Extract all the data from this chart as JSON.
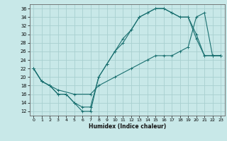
{
  "xlabel": "Humidex (Indice chaleur)",
  "bg_color": "#c8e8e8",
  "line_color": "#1a7070",
  "grid_color": "#a8d0d0",
  "xlim": [
    -0.5,
    23.5
  ],
  "ylim": [
    11,
    37
  ],
  "xticks": [
    0,
    1,
    2,
    3,
    4,
    5,
    6,
    7,
    8,
    9,
    10,
    11,
    12,
    13,
    14,
    15,
    16,
    17,
    18,
    19,
    20,
    21,
    22,
    23
  ],
  "yticks": [
    12,
    14,
    16,
    18,
    20,
    22,
    24,
    26,
    28,
    30,
    32,
    34,
    36
  ],
  "line1_x": [
    0,
    1,
    2,
    3,
    4,
    5,
    6,
    7,
    8,
    9,
    10,
    11,
    12,
    13,
    14,
    15,
    16,
    17,
    18,
    19,
    20,
    21,
    22,
    23
  ],
  "line1_y": [
    22,
    19,
    18,
    16,
    16,
    14,
    12,
    12,
    20,
    23,
    26,
    29,
    31,
    34,
    35,
    36,
    36,
    35,
    34,
    34,
    29,
    25,
    25,
    25
  ],
  "line2_x": [
    0,
    1,
    2,
    3,
    4,
    5,
    6,
    7,
    8,
    9,
    10,
    11,
    12,
    13,
    14,
    15,
    16,
    17,
    18,
    19,
    20,
    21,
    22,
    23
  ],
  "line2_y": [
    22,
    19,
    18,
    16,
    16,
    14,
    13,
    13,
    20,
    23,
    26,
    28,
    31,
    34,
    35,
    36,
    36,
    35,
    34,
    34,
    30,
    25,
    25,
    25
  ],
  "line3_x": [
    0,
    1,
    2,
    3,
    5,
    7,
    8,
    10,
    12,
    14,
    15,
    16,
    17,
    18,
    19,
    20,
    21,
    22,
    23
  ],
  "line3_y": [
    22,
    19,
    18,
    17,
    16,
    16,
    18,
    20,
    22,
    24,
    25,
    25,
    25,
    26,
    27,
    34,
    35,
    25,
    25
  ]
}
